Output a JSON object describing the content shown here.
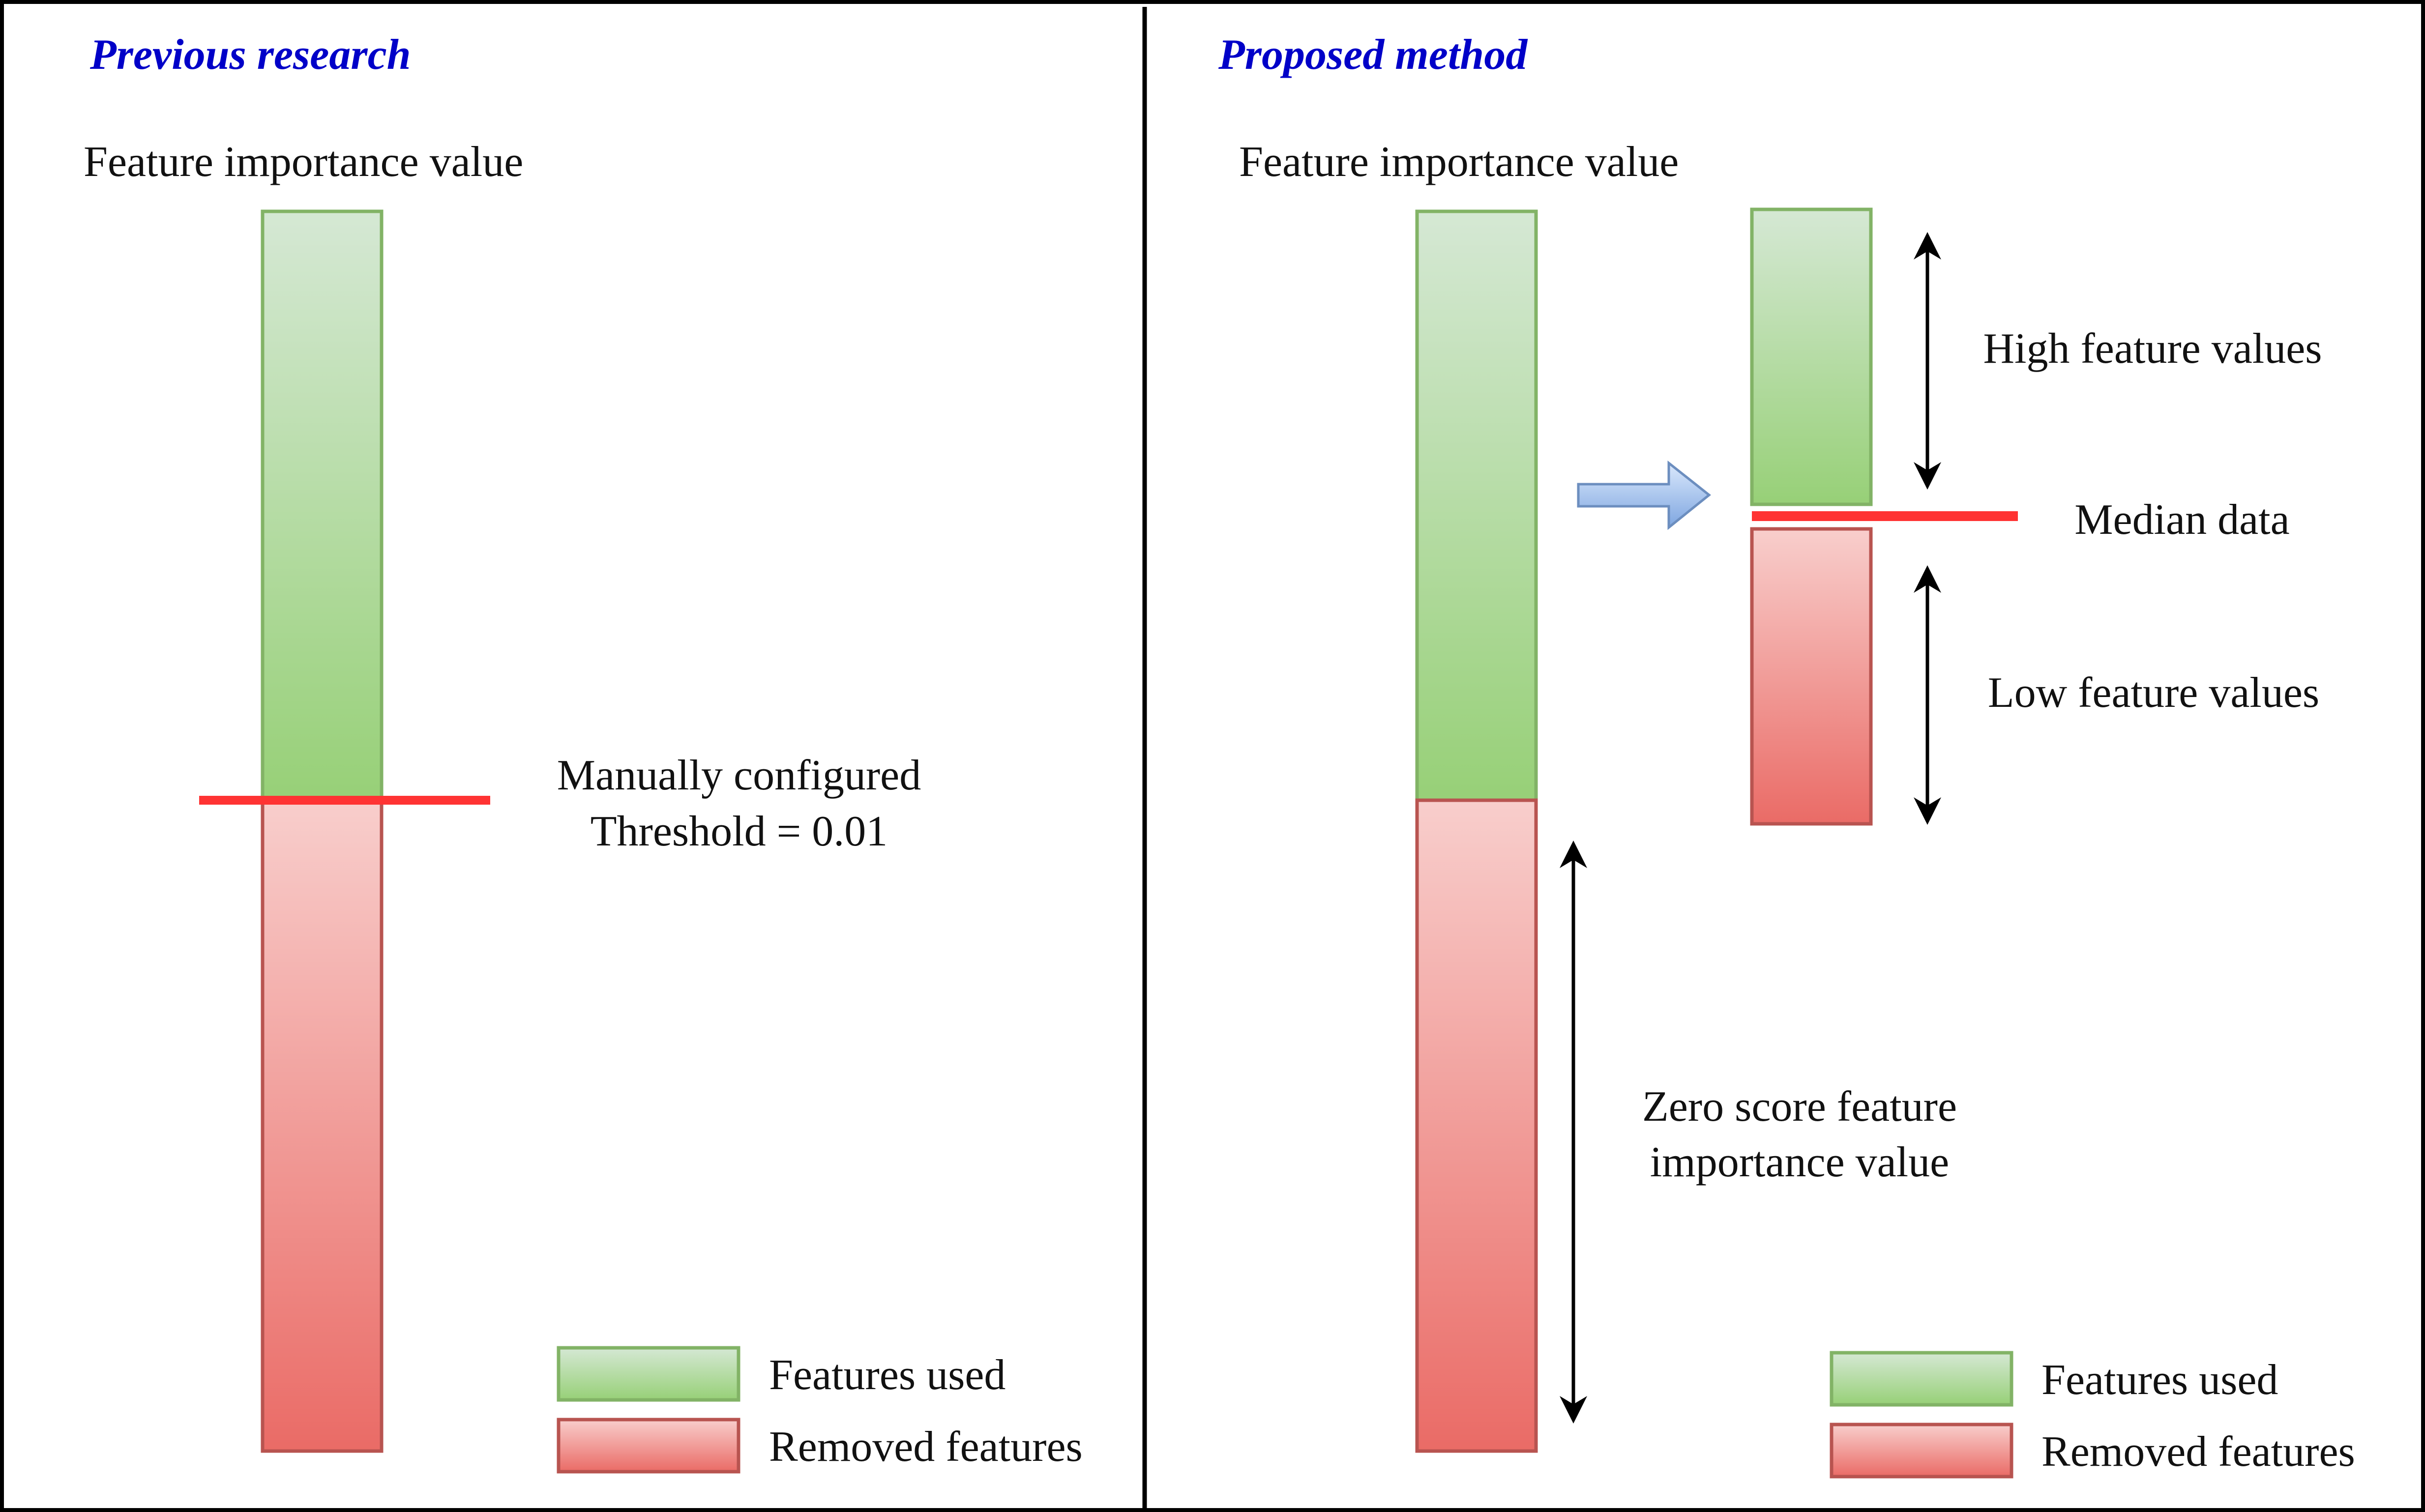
{
  "left_panel": {
    "title": "Previous research",
    "axis_label": "Feature importance value",
    "threshold_label_line1": "Manually configured",
    "threshold_label_line2": "Threshold = 0.01",
    "legend": {
      "used": "Features used",
      "removed": "Removed features"
    }
  },
  "right_panel": {
    "title": "Proposed method",
    "axis_label": "Feature importance value",
    "high_label": "High feature values",
    "median_label": "Median data",
    "low_label": "Low feature values",
    "zero_label_line1": "Zero score feature",
    "zero_label_line2": "importance value",
    "legend": {
      "used": "Features used",
      "removed": "Removed features"
    }
  },
  "colors": {
    "used_fill_top": "#d5e8d4",
    "used_fill_bottom": "#97d077",
    "used_stroke": "#82b366",
    "removed_fill_top": "#f8cecc",
    "removed_fill_bottom": "#ea6b66",
    "removed_stroke": "#b85450",
    "threshold_line": "#ff3333",
    "arrow_fill": "#7ea6e0",
    "title_color": "#0000c8"
  }
}
